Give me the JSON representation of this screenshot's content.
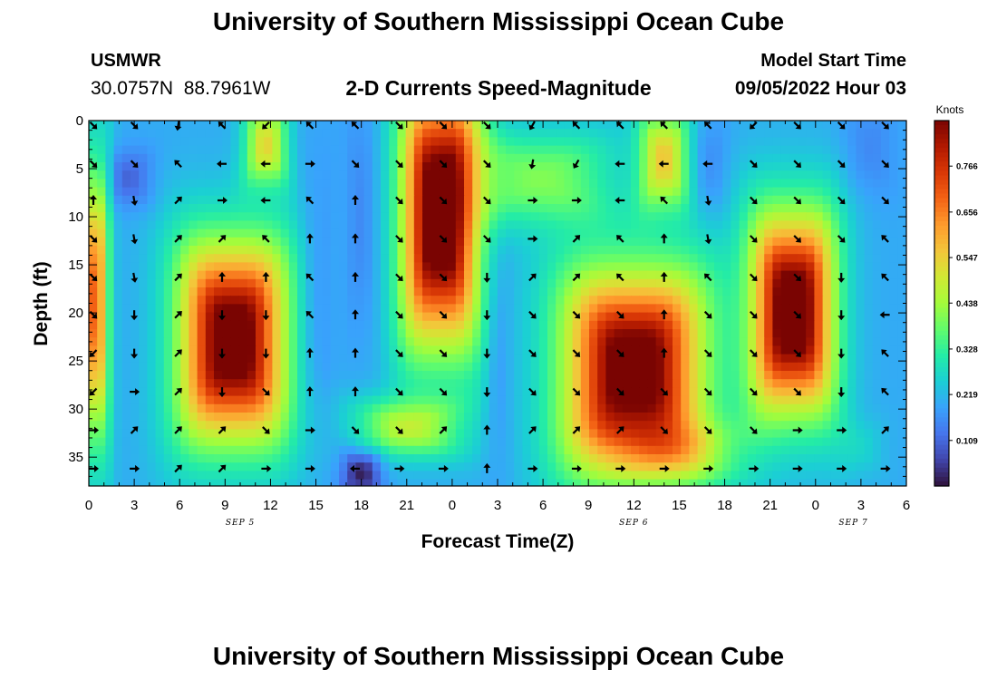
{
  "header": {
    "title": "University of Southern Mississippi Ocean Cube",
    "station": "USMWR",
    "coordinates": "30.0757N  88.7961W",
    "subtitle": "2-D Currents Speed-Magnitude",
    "model_start_label": "Model Start Time",
    "model_start_value": "09/05/2022 Hour 03"
  },
  "footer": {
    "title": "University of Southern Mississippi Ocean Cube"
  },
  "colors": {
    "background": "#ffffff",
    "text": "#000000",
    "arrow": "#000000",
    "colormap": [
      "#30123b",
      "#4145ab",
      "#4675ed",
      "#39a2fc",
      "#1bcfd4",
      "#24eca6",
      "#61fc6c",
      "#a4fc3b",
      "#d1e834",
      "#f3c63a",
      "#fe9b2d",
      "#f36315",
      "#d93806",
      "#b11901",
      "#7a0402"
    ]
  },
  "chart_data": {
    "type": "heatmap",
    "title": "2-D Currents Speed-Magnitude",
    "xlabel": "Forecast Time(Z)",
    "ylabel": "Depth (ft)",
    "x_ticks": [
      "0",
      "3",
      "6",
      "9",
      "12",
      "15",
      "18",
      "21",
      "0",
      "3",
      "6",
      "9",
      "12",
      "15",
      "18",
      "21",
      "0",
      "3",
      "6"
    ],
    "x_range_hours": [
      0,
      54
    ],
    "date_labels": [
      {
        "label": "SEP 5",
        "hour": 10
      },
      {
        "label": "SEP 6",
        "hour": 36
      },
      {
        "label": "SEP 7",
        "hour": 50.5
      }
    ],
    "y_ticks": [
      0,
      5,
      10,
      15,
      20,
      25,
      30,
      35
    ],
    "ylim": [
      0,
      38
    ],
    "y_inverted": true,
    "colorbar": {
      "label": "Knots",
      "ticks": [
        "0.766",
        "0.656",
        "0.547",
        "0.438",
        "0.328",
        "0.219",
        "0.109"
      ],
      "tick_values": [
        0.766,
        0.656,
        0.547,
        0.438,
        0.328,
        0.219,
        0.109
      ],
      "range": [
        0.0,
        0.875
      ]
    },
    "speed_field": {
      "units": "knots",
      "description": "approximate speed blobs (center hour, center depth ft, half-width hours, half-height ft, peak knots) added to a background",
      "background": 0.2,
      "blobs": [
        {
          "t": 0.4,
          "d": 19,
          "st": 0.9,
          "sd": 14,
          "v": 0.5
        },
        {
          "t": 2.6,
          "d": 6,
          "st": 1.6,
          "sd": 3,
          "v": -0.1
        },
        {
          "t": 9.5,
          "d": 23,
          "st": 3.4,
          "sd": 10,
          "v": 0.78
        },
        {
          "t": 11.7,
          "d": 2.5,
          "st": 1.4,
          "sd": 4,
          "v": 0.33
        },
        {
          "t": 15,
          "d": 19,
          "st": 1.2,
          "sd": 15,
          "v": -0.05
        },
        {
          "t": 18,
          "d": 36.5,
          "st": 1.3,
          "sd": 2.5,
          "v": -0.2
        },
        {
          "t": 18,
          "d": 10,
          "st": 1.0,
          "sd": 12,
          "v": -0.05
        },
        {
          "t": 23.2,
          "d": 10,
          "st": 2.4,
          "sd": 13,
          "v": 0.82
        },
        {
          "t": 21,
          "d": 32,
          "st": 3.5,
          "sd": 3,
          "v": 0.25
        },
        {
          "t": 27,
          "d": 25,
          "st": 0.9,
          "sd": 12,
          "v": -0.05
        },
        {
          "t": 29.8,
          "d": 6,
          "st": 5,
          "sd": 5,
          "v": 0.2
        },
        {
          "t": 36,
          "d": 26,
          "st": 4.5,
          "sd": 10,
          "v": 0.78
        },
        {
          "t": 38,
          "d": 4,
          "st": 1.6,
          "sd": 5,
          "v": 0.35
        },
        {
          "t": 38.5,
          "d": 34.5,
          "st": 4.5,
          "sd": 3,
          "v": 0.15
        },
        {
          "t": 41,
          "d": 5,
          "st": 1.2,
          "sd": 5,
          "v": -0.05
        },
        {
          "t": 46.5,
          "d": 20,
          "st": 2.6,
          "sd": 10,
          "v": 0.8
        },
        {
          "t": 51.5,
          "d": 3,
          "st": 1.8,
          "sd": 5,
          "v": -0.05
        },
        {
          "t": 51,
          "d": 34,
          "st": 1.6,
          "sd": 3,
          "v": 0.05
        }
      ]
    },
    "vectors": {
      "description": "current direction arrows; rows = depths (ft), cols = hours; angle in screen degrees (0 = right, 90 = down)",
      "depths": [
        0.5,
        4.5,
        8.3,
        12.3,
        16.3,
        20.2,
        24.2,
        28.2,
        32.2,
        36.2
      ],
      "hours": [
        0.3,
        3.0,
        5.9,
        8.8,
        11.7,
        14.6,
        17.6,
        20.5,
        23.4,
        26.3,
        29.3,
        32.2,
        35.1,
        38.0,
        40.9,
        43.9,
        46.8,
        49.7,
        52.6
      ],
      "angles": [
        [
          45,
          45,
          100,
          225,
          135,
          225,
          225,
          45,
          45,
          45,
          120,
          225,
          225,
          225,
          225,
          135,
          45,
          45,
          45
        ],
        [
          45,
          45,
          225,
          180,
          180,
          0,
          45,
          45,
          45,
          45,
          100,
          120,
          180,
          180,
          180,
          45,
          45,
          45,
          45
        ],
        [
          270,
          80,
          315,
          0,
          180,
          225,
          270,
          45,
          45,
          45,
          0,
          0,
          180,
          225,
          80,
          45,
          45,
          45,
          45
        ],
        [
          45,
          80,
          315,
          315,
          225,
          270,
          270,
          45,
          45,
          45,
          0,
          315,
          225,
          270,
          80,
          45,
          45,
          45,
          225
        ],
        [
          45,
          80,
          315,
          270,
          270,
          225,
          270,
          45,
          45,
          90,
          315,
          315,
          225,
          270,
          225,
          45,
          45,
          90,
          225
        ],
        [
          45,
          90,
          315,
          90,
          90,
          225,
          270,
          45,
          45,
          90,
          45,
          45,
          45,
          270,
          45,
          45,
          45,
          90,
          180
        ],
        [
          135,
          90,
          315,
          90,
          90,
          270,
          270,
          45,
          45,
          90,
          45,
          45,
          45,
          270,
          45,
          45,
          45,
          90,
          225
        ],
        [
          135,
          0,
          315,
          90,
          45,
          270,
          270,
          45,
          45,
          90,
          45,
          45,
          45,
          45,
          45,
          45,
          45,
          90,
          225
        ],
        [
          0,
          315,
          315,
          315,
          45,
          0,
          45,
          45,
          315,
          270,
          315,
          315,
          315,
          45,
          45,
          45,
          0,
          0,
          315
        ],
        [
          0,
          0,
          315,
          315,
          0,
          0,
          180,
          0,
          0,
          270,
          0,
          0,
          0,
          0,
          0,
          0,
          0,
          0,
          0
        ]
      ]
    }
  }
}
